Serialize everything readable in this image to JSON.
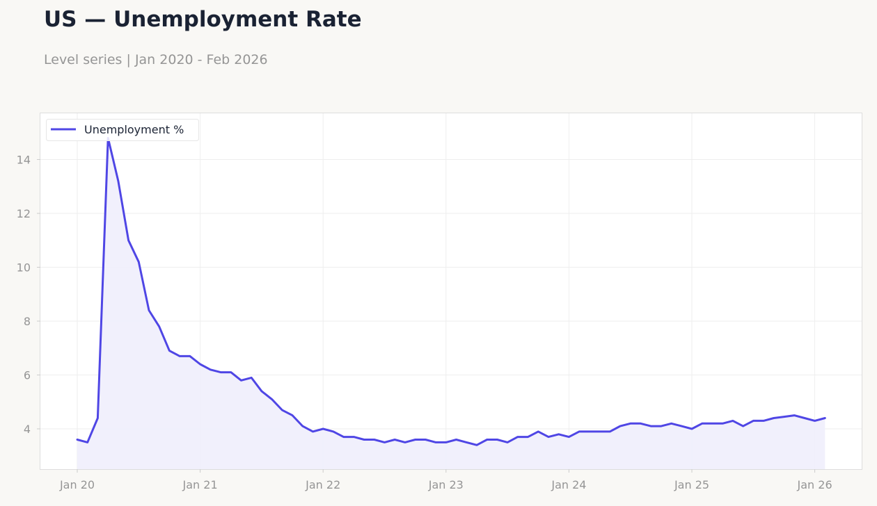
{
  "title": "US — Unemployment Rate",
  "subtitle": "Level series | Jan 2020 - Feb 2026",
  "colors": {
    "line": "#4f46e5",
    "fill": "#f0eefc",
    "grid": "#eeeeee",
    "axis_text": "#959595",
    "title": "#1a2233",
    "background": "#f9f8f5",
    "plot_background": "#ffffff"
  },
  "chart_data": {
    "type": "area",
    "title": "US — Unemployment Rate",
    "subtitle": "Level series | Jan 2020 - Feb 2026",
    "xlabel": "",
    "ylabel": "",
    "legend": {
      "position": "top-left",
      "entries": [
        "Unemployment %"
      ]
    },
    "grid": true,
    "xlim": [
      "2019-11",
      "2026-05"
    ],
    "ylim": [
      2.5,
      15.7
    ],
    "x_ticks": [
      "Jan 20",
      "Jan 21",
      "Jan 22",
      "Jan 23",
      "Jan 24",
      "Jan 25",
      "Jan 26"
    ],
    "y_ticks": [
      4,
      6,
      8,
      10,
      12,
      14
    ],
    "x": [
      "2020-01",
      "2020-02",
      "2020-03",
      "2020-04",
      "2020-05",
      "2020-06",
      "2020-07",
      "2020-08",
      "2020-09",
      "2020-10",
      "2020-11",
      "2020-12",
      "2021-01",
      "2021-02",
      "2021-03",
      "2021-04",
      "2021-05",
      "2021-06",
      "2021-07",
      "2021-08",
      "2021-09",
      "2021-10",
      "2021-11",
      "2021-12",
      "2022-01",
      "2022-02",
      "2022-03",
      "2022-04",
      "2022-05",
      "2022-06",
      "2022-07",
      "2022-08",
      "2022-09",
      "2022-10",
      "2022-11",
      "2022-12",
      "2023-01",
      "2023-02",
      "2023-03",
      "2023-04",
      "2023-05",
      "2023-06",
      "2023-07",
      "2023-08",
      "2023-09",
      "2023-10",
      "2023-11",
      "2023-12",
      "2024-01",
      "2024-02",
      "2024-03",
      "2024-04",
      "2024-05",
      "2024-06",
      "2024-07",
      "2024-08",
      "2024-09",
      "2024-10",
      "2024-11",
      "2024-12",
      "2025-01",
      "2025-02",
      "2025-03",
      "2025-04",
      "2025-05",
      "2025-06",
      "2025-07",
      "2025-08",
      "2025-09",
      "2025-10",
      "2025-11",
      "2025-12",
      "2026-01",
      "2026-02"
    ],
    "series": [
      {
        "name": "Unemployment %",
        "values": [
          3.6,
          3.5,
          4.4,
          14.8,
          13.2,
          11.0,
          10.2,
          8.4,
          7.8,
          6.9,
          6.7,
          6.7,
          6.4,
          6.2,
          6.1,
          6.1,
          5.8,
          5.9,
          5.4,
          5.1,
          4.7,
          4.5,
          4.1,
          3.9,
          4.0,
          3.9,
          3.7,
          3.7,
          3.6,
          3.6,
          3.5,
          3.6,
          3.5,
          3.6,
          3.6,
          3.5,
          3.5,
          3.6,
          3.5,
          3.4,
          3.6,
          3.6,
          3.5,
          3.7,
          3.7,
          3.9,
          3.7,
          3.8,
          3.7,
          3.9,
          3.9,
          3.9,
          3.9,
          4.1,
          4.2,
          4.2,
          4.1,
          4.1,
          4.2,
          4.1,
          4.0,
          4.2,
          4.2,
          4.2,
          4.3,
          4.1,
          4.3,
          4.3,
          4.4,
          4.45,
          4.5,
          4.4,
          4.3,
          4.4
        ]
      }
    ]
  }
}
